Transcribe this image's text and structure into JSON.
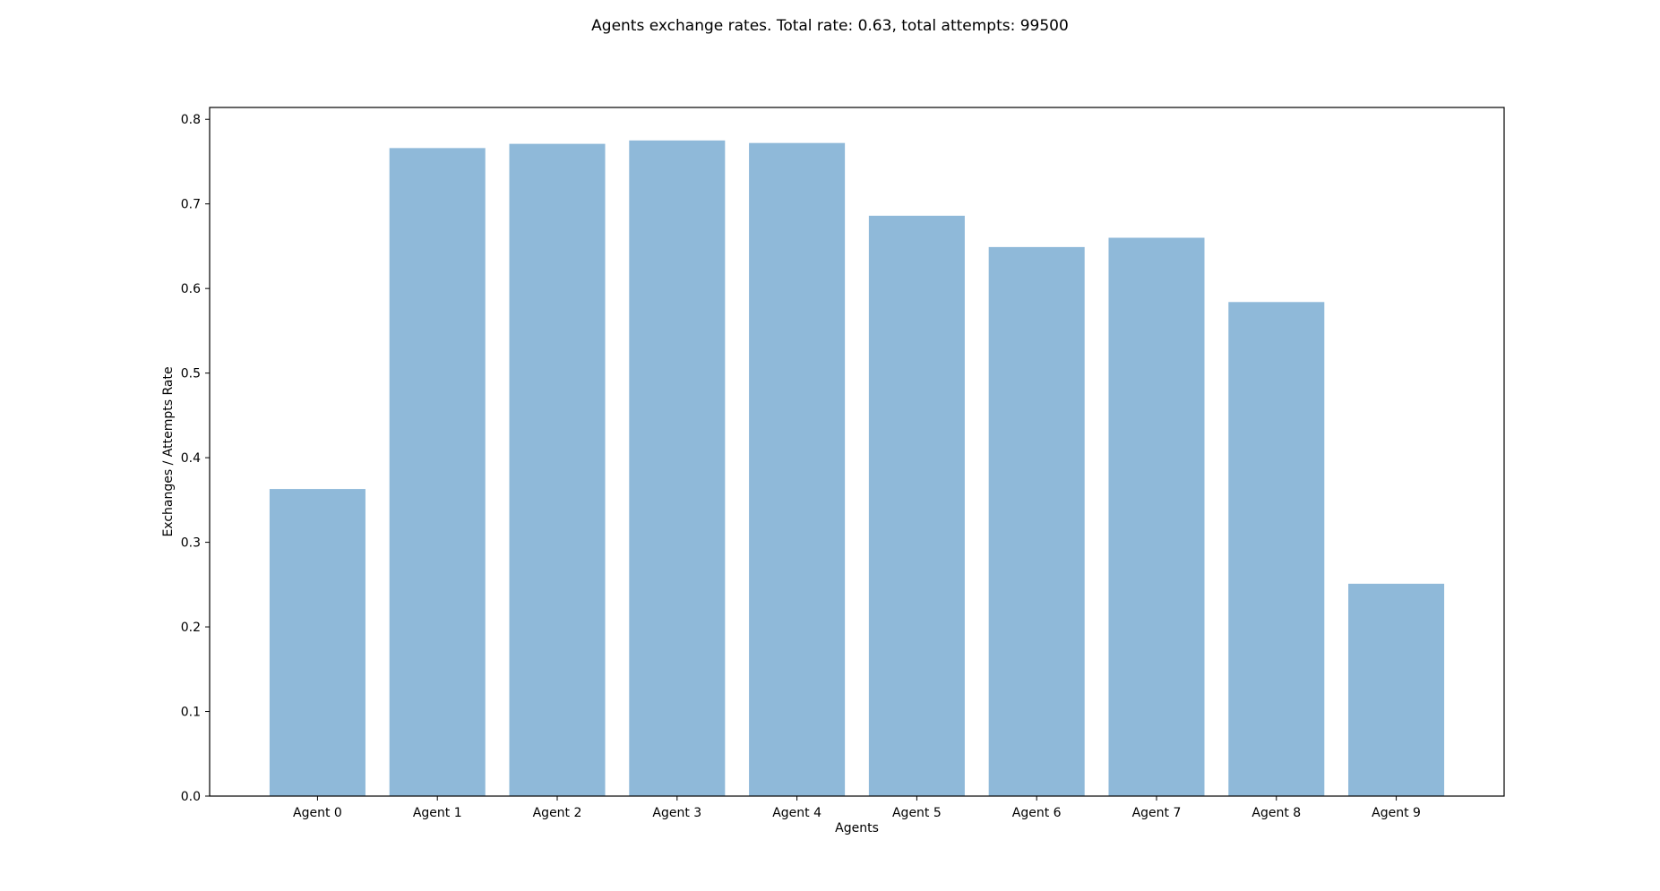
{
  "chart_data": {
    "type": "bar",
    "title": "Agents exchange rates. Total rate: 0.63, total attempts: 99500",
    "xlabel": "Agents",
    "ylabel": "Exchanges / Attempts Rate",
    "categories": [
      "Agent 0",
      "Agent 1",
      "Agent 2",
      "Agent 3",
      "Agent 4",
      "Agent 5",
      "Agent 6",
      "Agent 7",
      "Agent 8",
      "Agent 9"
    ],
    "values": [
      0.363,
      0.766,
      0.771,
      0.775,
      0.772,
      0.686,
      0.649,
      0.66,
      0.584,
      0.251
    ],
    "ylim": [
      0,
      0.814
    ],
    "yticks": [
      "0.0",
      "0.1",
      "0.2",
      "0.3",
      "0.4",
      "0.5",
      "0.6",
      "0.7",
      "0.8"
    ],
    "bar_color": "#8fb9d9",
    "grid": false,
    "legend": "none"
  }
}
